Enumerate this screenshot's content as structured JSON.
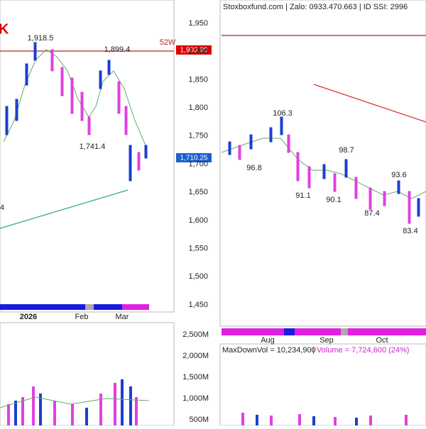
{
  "header": {
    "text": "Stoxboxfund.com | Zalo: 0933.470.663 | ID SSI: 2996"
  },
  "left_panel": {
    "corner_label": "K",
    "marker": "4",
    "tag_52w": "52W",
    "peak_labels": [
      "1,918.5",
      "1,899.4",
      "1,741.4"
    ],
    "price_tags": [
      "1,903.90",
      "1,710.25"
    ],
    "price_axis": [
      "1,950",
      "1,900",
      "1,850",
      "1,800",
      "1,750",
      "1,700",
      "1,650",
      "1,600",
      "1,550",
      "1,500",
      "1,450"
    ],
    "dates": [
      "2026",
      "Feb",
      "Mar"
    ],
    "volume_axis": [
      "2,500M",
      "2,000M",
      "1,500M",
      "1,000M",
      "500M"
    ]
  },
  "right_panel": {
    "peak_labels": [
      "106.3",
      "96.8",
      "98.7",
      "91.1",
      "90.1",
      "93.6",
      "87.4",
      "83.4"
    ],
    "dates": [
      "Aug",
      "Sep",
      "Oct"
    ],
    "volume_header": [
      "MaxDownVol = 10,234,900",
      "| Volume = 7,724,600 (24%)"
    ]
  }
}
